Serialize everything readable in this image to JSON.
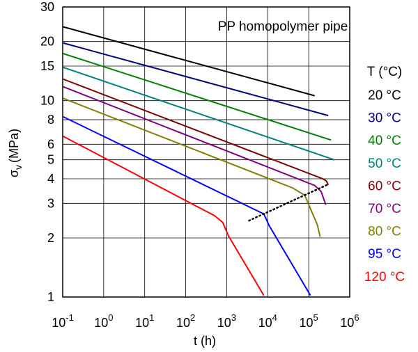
{
  "chart_data": {
    "type": "line",
    "title": "PP homopolymer pipe",
    "xlabel": "t (h)",
    "ylabel": "σ_v (MPa)",
    "ylabel_main": "σ",
    "ylabel_sub": "v",
    "ylabel_unit": "(MPa)",
    "xscale": "log",
    "yscale": "log",
    "xlim": [
      0.1,
      1000000
    ],
    "ylim": [
      1,
      30
    ],
    "grid": true,
    "x_ticks": [
      {
        "value": 0.1,
        "base": "10",
        "exp": "-1"
      },
      {
        "value": 1,
        "base": "10",
        "exp": "0"
      },
      {
        "value": 10,
        "base": "10",
        "exp": "1"
      },
      {
        "value": 100,
        "base": "10",
        "exp": "2"
      },
      {
        "value": 1000,
        "base": "10",
        "exp": "3"
      },
      {
        "value": 10000,
        "base": "10",
        "exp": "4"
      },
      {
        "value": 100000,
        "base": "10",
        "exp": "5"
      },
      {
        "value": 1000000,
        "base": "10",
        "exp": "6"
      }
    ],
    "y_ticks": [
      {
        "value": 1,
        "label": "1"
      },
      {
        "value": 2,
        "label": "2"
      },
      {
        "value": 3,
        "label": "3"
      },
      {
        "value": 4,
        "label": "4"
      },
      {
        "value": 5,
        "label": "5"
      },
      {
        "value": 6,
        "label": "6"
      },
      {
        "value": 8,
        "label": "8"
      },
      {
        "value": 10,
        "label": "10"
      },
      {
        "value": 15,
        "label": "15"
      },
      {
        "value": 20,
        "label": "20"
      },
      {
        "value": 30,
        "label": "30"
      }
    ],
    "legend_title": "T (°C)",
    "legend_position": "right",
    "series": [
      {
        "name": "20 °C",
        "color": "#000000",
        "points": [
          [
            0.1,
            23.8
          ],
          [
            140000,
            10.6
          ]
        ]
      },
      {
        "name": "30 °C",
        "color": "#000080",
        "points": [
          [
            0.1,
            19.7
          ],
          [
            300000,
            8.4
          ]
        ]
      },
      {
        "name": "40 °C",
        "color": "#008000",
        "points": [
          [
            0.1,
            17.4
          ],
          [
            350000,
            6.3
          ]
        ]
      },
      {
        "name": "50 °C",
        "color": "#008080",
        "points": [
          [
            0.1,
            14.8
          ],
          [
            420000,
            5.0
          ]
        ]
      },
      {
        "name": "60 °C",
        "color": "#800000",
        "points": [
          [
            0.1,
            12.9
          ],
          [
            220000,
            4.0
          ],
          [
            270000,
            3.9
          ],
          [
            300000,
            3.72
          ]
        ]
      },
      {
        "name": "70 °C",
        "color": "#800080",
        "points": [
          [
            0.1,
            11.8
          ],
          [
            140000,
            3.7
          ],
          [
            200000,
            3.45
          ],
          [
            260000,
            2.95
          ]
        ]
      },
      {
        "name": "80 °C",
        "color": "#808000",
        "points": [
          [
            0.1,
            10.3
          ],
          [
            40000,
            3.6
          ],
          [
            80000,
            3.3
          ],
          [
            120000,
            2.7
          ],
          [
            160000,
            2.35
          ],
          [
            190000,
            2.03
          ]
        ]
      },
      {
        "name": "95 °C",
        "color": "#0000ff",
        "points": [
          [
            0.1,
            8.3
          ],
          [
            8000,
            2.65
          ],
          [
            11000,
            2.3
          ],
          [
            110000,
            1.02
          ]
        ]
      },
      {
        "name": "120 °C",
        "color": "#ff0000",
        "points": [
          [
            0.1,
            6.6
          ],
          [
            500,
            2.6
          ],
          [
            800,
            2.4
          ],
          [
            1100,
            2.05
          ],
          [
            8000,
            1.02
          ]
        ]
      }
    ],
    "annotation_line": {
      "style": "dotted",
      "color": "#000000",
      "points": [
        [
          3500,
          2.45
        ],
        [
          300000,
          3.75
        ]
      ]
    }
  }
}
